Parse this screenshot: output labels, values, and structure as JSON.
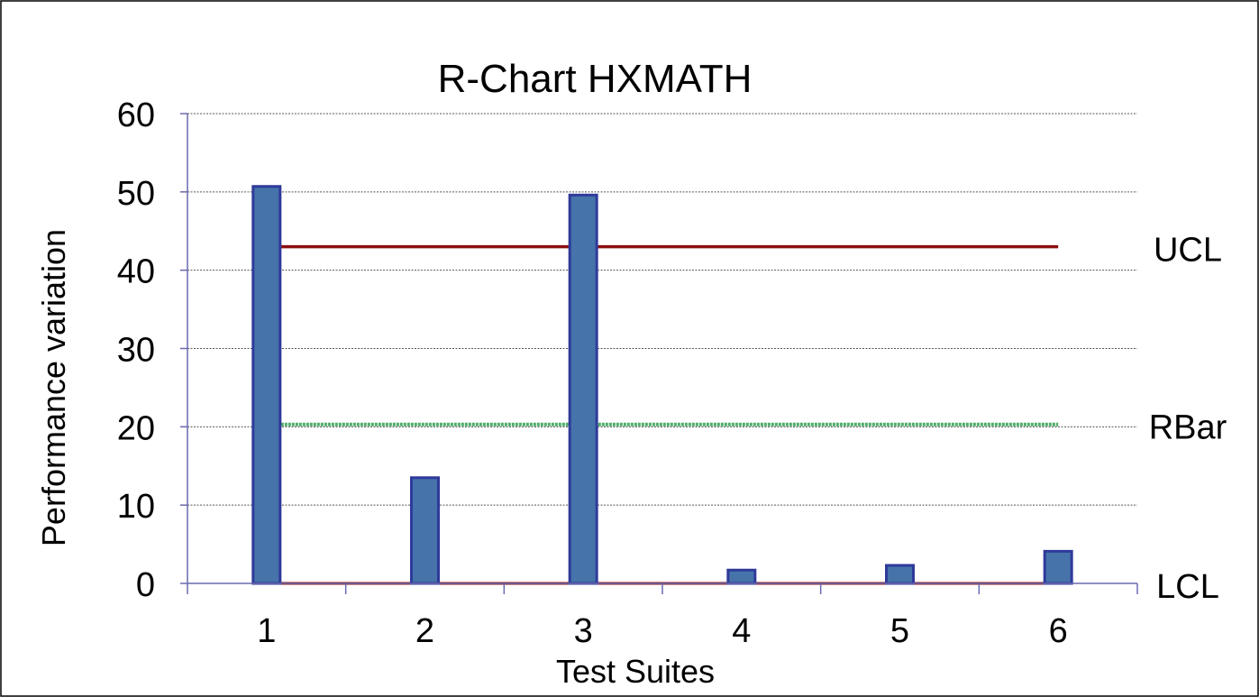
{
  "chart_data": {
    "type": "bar",
    "title": "R-Chart HXMATH",
    "xlabel": "Test Suites",
    "ylabel": "Performance variation",
    "categories": [
      "1",
      "2",
      "3",
      "4",
      "5",
      "6"
    ],
    "series": [
      {
        "values": [
          50.7,
          13.5,
          49.6,
          1.7,
          2.3,
          4.1
        ]
      }
    ],
    "control_lines": [
      {
        "name": "UCL",
        "value": 43.0
      },
      {
        "name": "RBar",
        "value": 20.3
      },
      {
        "name": "LCL",
        "value": 0
      }
    ],
    "yticks": [
      "0",
      "10",
      "20",
      "30",
      "40",
      "50",
      "60"
    ],
    "ylim": [
      0,
      60
    ],
    "grid": true,
    "colors": {
      "bar_fill": "#4673aa",
      "bar_stroke": "#2f3a9a",
      "ucl": "#8b0f0f",
      "rbar": "#4fae6b",
      "lcl": "#8b0f0f",
      "grid": "#555555"
    }
  }
}
